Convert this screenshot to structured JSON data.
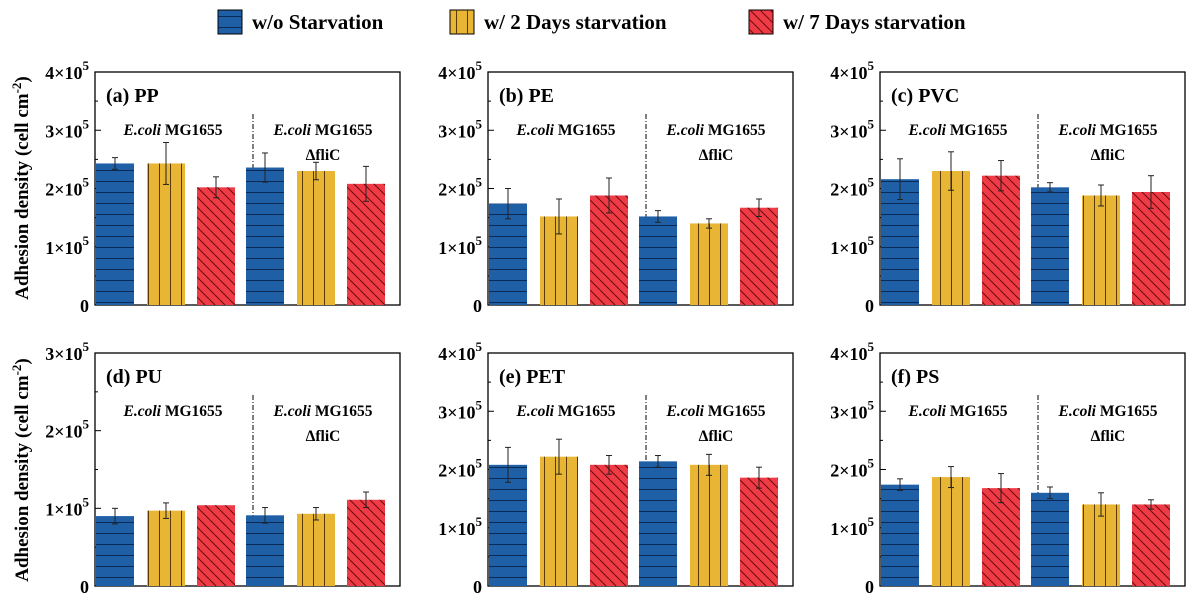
{
  "legend": [
    {
      "label": "w/o Starvation",
      "color": "#1f5fa6",
      "pattern": "horizontal"
    },
    {
      "label": "w/ 2 Days starvation",
      "color": "#e8b534",
      "pattern": "vertical"
    },
    {
      "label": "w/ 7 Days starvation",
      "color": "#ef3b45",
      "pattern": "diagonal"
    }
  ],
  "ylabel_main": "Adhesion density (cell cm",
  "ylabel_sup": "-2",
  "ylabel_close": ")",
  "group_labels": {
    "strain_italic": "E.coli",
    "strain_name": "MG1655",
    "mutant": "ΔfliC"
  },
  "chart_data": [
    {
      "type": "bar",
      "title": "(a) PP",
      "categories": [
        "E.coli MG1655",
        "E.coli MG1655 ΔfliC"
      ],
      "series": [
        {
          "name": "w/o Starvation",
          "values": [
            243000,
            236000
          ],
          "errors": [
            10000,
            25000
          ]
        },
        {
          "name": "w/ 2 Days starvation",
          "values": [
            243000,
            230000
          ],
          "errors": [
            36000,
            15000
          ]
        },
        {
          "name": "w/ 7 Days starvation",
          "values": [
            202000,
            208000
          ],
          "errors": [
            18000,
            30000
          ]
        }
      ],
      "ylim": [
        0,
        400000
      ],
      "yticks": [
        {
          "base": "0",
          "exp": ""
        },
        {
          "base": "1×10",
          "exp": "5"
        },
        {
          "base": "2×10",
          "exp": "5"
        },
        {
          "base": "3×10",
          "exp": "5"
        },
        {
          "base": "4×10",
          "exp": "5"
        }
      ]
    },
    {
      "type": "bar",
      "title": "(b) PE",
      "categories": [
        "E.coli MG1655",
        "E.coli MG1655 ΔfliC"
      ],
      "series": [
        {
          "name": "w/o Starvation",
          "values": [
            174000,
            152000
          ],
          "errors": [
            26000,
            10000
          ]
        },
        {
          "name": "w/ 2 Days starvation",
          "values": [
            152000,
            140000
          ],
          "errors": [
            30000,
            8000
          ]
        },
        {
          "name": "w/ 7 Days starvation",
          "values": [
            188000,
            167000
          ],
          "errors": [
            30000,
            15000
          ]
        }
      ],
      "ylim": [
        0,
        400000
      ],
      "yticks": [
        {
          "base": "0",
          "exp": ""
        },
        {
          "base": "1×10",
          "exp": "5"
        },
        {
          "base": "2×10",
          "exp": "5"
        },
        {
          "base": "3×10",
          "exp": "5"
        },
        {
          "base": "4×10",
          "exp": "5"
        }
      ]
    },
    {
      "type": "bar",
      "title": "(c) PVC",
      "categories": [
        "E.coli MG1655",
        "E.coli MG1655 ΔfliC"
      ],
      "series": [
        {
          "name": "w/o Starvation",
          "values": [
            216000,
            202000
          ],
          "errors": [
            35000,
            8000
          ]
        },
        {
          "name": "w/ 2 Days starvation",
          "values": [
            230000,
            188000
          ],
          "errors": [
            33000,
            18000
          ]
        },
        {
          "name": "w/ 7 Days starvation",
          "values": [
            222000,
            194000
          ],
          "errors": [
            26000,
            28000
          ]
        }
      ],
      "ylim": [
        0,
        400000
      ],
      "yticks": [
        {
          "base": "0",
          "exp": ""
        },
        {
          "base": "1×10",
          "exp": "5"
        },
        {
          "base": "2×10",
          "exp": "5"
        },
        {
          "base": "3×10",
          "exp": "5"
        },
        {
          "base": "4×10",
          "exp": "5"
        }
      ]
    },
    {
      "type": "bar",
      "title": "(d) PU",
      "categories": [
        "E.coli MG1655",
        "E.coli MG1655 ΔfliC"
      ],
      "series": [
        {
          "name": "w/o Starvation",
          "values": [
            90000,
            91000
          ],
          "errors": [
            10000,
            10000
          ]
        },
        {
          "name": "w/ 2 Days starvation",
          "values": [
            97000,
            93000
          ],
          "errors": [
            10000,
            8000
          ]
        },
        {
          "name": "w/ 7 Days starvation",
          "values": [
            104000,
            111000
          ],
          "errors": [
            0,
            10000
          ]
        }
      ],
      "ylim": [
        0,
        300000
      ],
      "yticks": [
        {
          "base": "0",
          "exp": ""
        },
        {
          "base": "1×10",
          "exp": "5"
        },
        {
          "base": "2×10",
          "exp": "5"
        },
        {
          "base": "3×10",
          "exp": "5"
        }
      ]
    },
    {
      "type": "bar",
      "title": "(e) PET",
      "categories": [
        "E.coli MG1655",
        "E.coli MG1655 ΔfliC"
      ],
      "series": [
        {
          "name": "w/o Starvation",
          "values": [
            208000,
            214000
          ],
          "errors": [
            30000,
            10000
          ]
        },
        {
          "name": "w/ 2 Days starvation",
          "values": [
            222000,
            208000
          ],
          "errors": [
            30000,
            18000
          ]
        },
        {
          "name": "w/ 7 Days starvation",
          "values": [
            208000,
            186000
          ],
          "errors": [
            16000,
            18000
          ]
        }
      ],
      "ylim": [
        0,
        400000
      ],
      "yticks": [
        {
          "base": "0",
          "exp": ""
        },
        {
          "base": "1×10",
          "exp": "5"
        },
        {
          "base": "2×10",
          "exp": "5"
        },
        {
          "base": "3×10",
          "exp": "5"
        },
        {
          "base": "4×10",
          "exp": "5"
        }
      ]
    },
    {
      "type": "bar",
      "title": "(f) PS",
      "categories": [
        "E.coli MG1655",
        "E.coli MG1655 ΔfliC"
      ],
      "series": [
        {
          "name": "w/o Starvation",
          "values": [
            174000,
            160000
          ],
          "errors": [
            10000,
            10000
          ]
        },
        {
          "name": "w/ 2 Days starvation",
          "values": [
            187000,
            140000
          ],
          "errors": [
            18000,
            20000
          ]
        },
        {
          "name": "w/ 7 Days starvation",
          "values": [
            168000,
            140000
          ],
          "errors": [
            25000,
            8000
          ]
        }
      ],
      "ylim": [
        0,
        400000
      ],
      "yticks": [
        {
          "base": "0",
          "exp": ""
        },
        {
          "base": "1×10",
          "exp": "5"
        },
        {
          "base": "2×10",
          "exp": "5"
        },
        {
          "base": "3×10",
          "exp": "5"
        },
        {
          "base": "4×10",
          "exp": "5"
        }
      ]
    }
  ]
}
